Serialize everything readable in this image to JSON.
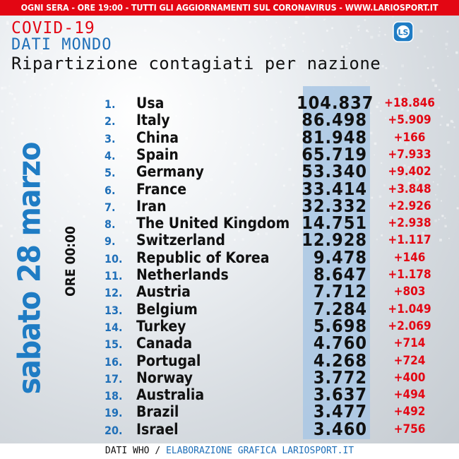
{
  "banner": "OGNI SERA - ORE 19:00 - TUTTI GLI AGGIORNAMENTI SUL CORONAVIRUS - WWW.LARIOSPORT.IT",
  "title_line1": "COVID-19",
  "title_line2": "DATI MONDO",
  "title_line3": "Ripartizione contagiati per nazione",
  "logo_text": "LS",
  "date_label": "sabato 28 marzo",
  "time_label": "ORE 00:00",
  "rows": [
    {
      "rank": "1.",
      "country": "Usa",
      "cases": "104.837",
      "delta": "+18.846"
    },
    {
      "rank": "2.",
      "country": "Italy",
      "cases": "86.498",
      "delta": "+5.909"
    },
    {
      "rank": "3.",
      "country": "China",
      "cases": "81.948",
      "delta": "+166"
    },
    {
      "rank": "4.",
      "country": "Spain",
      "cases": "65.719",
      "delta": "+7.933"
    },
    {
      "rank": "5.",
      "country": "Germany",
      "cases": "53.340",
      "delta": "+9.402"
    },
    {
      "rank": "6.",
      "country": "France",
      "cases": "33.414",
      "delta": "+3.848"
    },
    {
      "rank": "7.",
      "country": "Iran",
      "cases": "32.332",
      "delta": "+2.926"
    },
    {
      "rank": "8.",
      "country": "The United Kingdom",
      "cases": "14.751",
      "delta": "+2.938"
    },
    {
      "rank": "9.",
      "country": "Switzerland",
      "cases": "12.928",
      "delta": "+1.117"
    },
    {
      "rank": "10.",
      "country": "Republic of Korea",
      "cases": "9.478",
      "delta": "+146"
    },
    {
      "rank": "11.",
      "country": "Netherlands",
      "cases": "8.647",
      "delta": "+1.178"
    },
    {
      "rank": "12.",
      "country": "Austria",
      "cases": "7.712",
      "delta": "+803"
    },
    {
      "rank": "13.",
      "country": "Belgium",
      "cases": "7.284",
      "delta": "+1.049"
    },
    {
      "rank": "14.",
      "country": "Turkey",
      "cases": "5.698",
      "delta": "+2.069"
    },
    {
      "rank": "15.",
      "country": "Canada",
      "cases": "4.760",
      "delta": "+714"
    },
    {
      "rank": "16.",
      "country": "Portugal",
      "cases": "4.268",
      "delta": "+724"
    },
    {
      "rank": "17.",
      "country": "Norway",
      "cases": "3.772",
      "delta": "+400"
    },
    {
      "rank": "18.",
      "country": "Australia",
      "cases": "3.637",
      "delta": "+494"
    },
    {
      "rank": "19.",
      "country": "Brazil",
      "cases": "3.477",
      "delta": "+492"
    },
    {
      "rank": "20.",
      "country": "Israel",
      "cases": "3.460",
      "delta": "+756"
    }
  ],
  "footer": {
    "source": "DATI WHO",
    "separator": " / ",
    "credit": "ELABORAZIONE GRAFICA LARIOSPORT.IT"
  },
  "colors": {
    "accent_red": "#e30613",
    "accent_blue": "#1e6fb8",
    "column_blue": "#a9c7e4"
  }
}
